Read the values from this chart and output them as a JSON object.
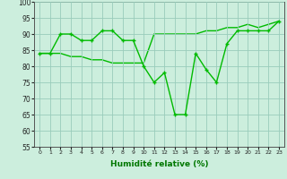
{
  "x": [
    0,
    1,
    2,
    3,
    4,
    5,
    6,
    7,
    8,
    9,
    10,
    11,
    12,
    13,
    14,
    15,
    16,
    17,
    18,
    19,
    20,
    21,
    22,
    23
  ],
  "line1_smooth": [
    84,
    84,
    84,
    83,
    83,
    82,
    82,
    81,
    81,
    81,
    81,
    90,
    90,
    90,
    90,
    90,
    91,
    91,
    92,
    92,
    93,
    92,
    93,
    94
  ],
  "line2_spiky": [
    84,
    84,
    90,
    90,
    88,
    88,
    91,
    91,
    88,
    88,
    80,
    75,
    78,
    65,
    65,
    84,
    79,
    75,
    87,
    91,
    91,
    91,
    91,
    94
  ],
  "xlabel": "Humidité relative (%)",
  "ylim": [
    55,
    100
  ],
  "xlim": [
    -0.5,
    23.5
  ],
  "yticks": [
    55,
    60,
    65,
    70,
    75,
    80,
    85,
    90,
    95,
    100
  ],
  "xticks": [
    0,
    1,
    2,
    3,
    4,
    5,
    6,
    7,
    8,
    9,
    10,
    11,
    12,
    13,
    14,
    15,
    16,
    17,
    18,
    19,
    20,
    21,
    22,
    23
  ],
  "line_color": "#00bb00",
  "bg_color": "#cceedd",
  "grid_color": "#99ccbb",
  "marker": "+",
  "marker_size": 3.5,
  "line_width": 1.0
}
